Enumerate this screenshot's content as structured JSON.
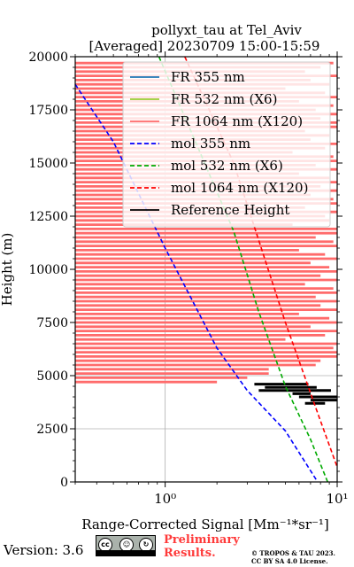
{
  "chart_data": {
    "type": "line",
    "title_line1": "pollyxt_tau at Tel_Aviv",
    "title_line2": "[Averaged] 20230709 15:00-15:59",
    "xlabel": "Range-Corrected Signal [Mm⁻¹*sr⁻¹]",
    "ylabel": "Height (m)",
    "x_scale": "log",
    "xlim": [
      0.3,
      10
    ],
    "ylim": [
      0,
      20000
    ],
    "x_ticks": [
      {
        "value": 1,
        "label": "10⁰"
      },
      {
        "value": 10,
        "label": "10¹"
      }
    ],
    "y_ticks": [
      {
        "value": 0,
        "label": "0"
      },
      {
        "value": 2500,
        "label": "2500"
      },
      {
        "value": 5000,
        "label": "5000"
      },
      {
        "value": 7500,
        "label": "7500"
      },
      {
        "value": 10000,
        "label": "10000"
      },
      {
        "value": 12500,
        "label": "12500"
      },
      {
        "value": 15000,
        "label": "15000"
      },
      {
        "value": 17500,
        "label": "17500"
      },
      {
        "value": 20000,
        "label": "20000"
      }
    ],
    "grid": "x=1 and y=2500, 5000",
    "legend_position": "upper-right",
    "legend": [
      {
        "label": "FR 355 nm",
        "color": "#1f77b4",
        "style": "solid"
      },
      {
        "label": "FR 532 nm (X6)",
        "color": "#9acd32",
        "style": "solid"
      },
      {
        "label": "FR 1064 nm (X120)",
        "color": "#ff6b6b",
        "style": "solid"
      },
      {
        "label": "mol 355 nm",
        "color": "#0000ff",
        "style": "dashed"
      },
      {
        "label": "mol 532 nm (X6)",
        "color": "#00aa00",
        "style": "dashed"
      },
      {
        "label": "mol 1064 nm (X120)",
        "color": "#ff0000",
        "style": "dashed"
      },
      {
        "label": "Reference Height",
        "color": "#000000",
        "style": "solid"
      }
    ],
    "series": [
      {
        "name": "mol 355 nm",
        "color": "#0000ff",
        "dash": true,
        "points": [
          [
            0.3,
            18700
          ],
          [
            0.5,
            16000
          ],
          [
            1.0,
            11000
          ],
          [
            2.0,
            6300
          ],
          [
            3.0,
            4300
          ],
          [
            5.0,
            2400
          ],
          [
            7.7,
            0
          ]
        ]
      },
      {
        "name": "mol 532 nm (X6)",
        "color": "#00aa00",
        "dash": true,
        "points": [
          [
            0.92,
            20000
          ],
          [
            1.5,
            16000
          ],
          [
            2.5,
            11800
          ],
          [
            3.5,
            8000
          ],
          [
            5.0,
            4500
          ],
          [
            7.0,
            2000
          ],
          [
            8.8,
            0
          ]
        ]
      },
      {
        "name": "mol 1064 nm (X120)",
        "color": "#ff0000",
        "dash": true,
        "points": [
          [
            1.3,
            20000
          ],
          [
            2.5,
            15000
          ],
          [
            3.3,
            12000
          ],
          [
            5.0,
            7500
          ],
          [
            7.5,
            3500
          ],
          [
            10.0,
            700
          ]
        ]
      }
    ],
    "fr_1064_segments": [
      [
        19700,
        0.3,
        9.5
      ],
      [
        19500,
        0.3,
        8.0
      ],
      [
        19300,
        0.3,
        6.5
      ],
      [
        19100,
        0.3,
        10.0
      ],
      [
        18900,
        0.3,
        7.0
      ],
      [
        18700,
        0.3,
        9.0
      ],
      [
        18500,
        0.3,
        5.0
      ],
      [
        18300,
        0.3,
        8.5
      ],
      [
        18100,
        0.3,
        10.0
      ],
      [
        17900,
        0.3,
        6.0
      ],
      [
        17700,
        0.3,
        9.5
      ],
      [
        17500,
        0.3,
        7.5
      ],
      [
        17300,
        0.3,
        10.0
      ],
      [
        17100,
        0.3,
        8.0
      ],
      [
        16900,
        0.3,
        10.0
      ],
      [
        16700,
        0.3,
        10.0
      ],
      [
        16500,
        0.3,
        6.5
      ],
      [
        16300,
        0.3,
        9.0
      ],
      [
        16100,
        0.3,
        7.0
      ],
      [
        15900,
        0.3,
        10.0
      ],
      [
        15700,
        0.3,
        8.5
      ],
      [
        15500,
        0.3,
        5.5
      ],
      [
        15300,
        0.3,
        9.5
      ],
      [
        15100,
        0.3,
        10.0
      ],
      [
        14900,
        0.3,
        7.5
      ],
      [
        14700,
        0.3,
        10.0
      ],
      [
        14500,
        0.3,
        6.0
      ],
      [
        14300,
        0.3,
        9.0
      ],
      [
        14100,
        0.3,
        10.0
      ],
      [
        13900,
        0.3,
        8.0
      ],
      [
        13700,
        0.3,
        10.0
      ],
      [
        13500,
        0.3,
        7.0
      ],
      [
        13300,
        0.3,
        9.5
      ],
      [
        13100,
        0.3,
        10.0
      ],
      [
        12900,
        0.3,
        6.5
      ],
      [
        12700,
        0.3,
        10.0
      ],
      [
        12500,
        0.3,
        8.5
      ],
      [
        12300,
        0.3,
        9.0
      ],
      [
        12100,
        0.3,
        5.5
      ],
      [
        11900,
        0.3,
        10.0
      ],
      [
        11700,
        0.3,
        10.0
      ],
      [
        11500,
        0.3,
        7.5
      ],
      [
        11300,
        0.3,
        9.5
      ],
      [
        11100,
        0.3,
        10.0
      ],
      [
        10900,
        0.3,
        6.0
      ],
      [
        10700,
        0.3,
        8.5
      ],
      [
        10500,
        0.3,
        10.0
      ],
      [
        10300,
        0.3,
        7.0
      ],
      [
        10100,
        0.3,
        9.0
      ],
      [
        9900,
        0.3,
        10.0
      ],
      [
        9700,
        0.3,
        8.0
      ],
      [
        9500,
        0.3,
        10.0
      ],
      [
        9300,
        0.3,
        6.5
      ],
      [
        9100,
        0.3,
        9.5
      ],
      [
        8900,
        0.3,
        10.0
      ],
      [
        8700,
        0.3,
        7.5
      ],
      [
        8500,
        0.3,
        10.0
      ],
      [
        8300,
        0.3,
        8.0
      ],
      [
        8100,
        0.3,
        10.0
      ],
      [
        7900,
        0.3,
        6.0
      ],
      [
        7700,
        0.3,
        9.0
      ],
      [
        7500,
        0.3,
        10.0
      ],
      [
        7300,
        0.3,
        7.0
      ],
      [
        7100,
        0.3,
        10.0
      ],
      [
        6900,
        0.3,
        8.5
      ],
      [
        6700,
        0.3,
        5.0
      ],
      [
        6500,
        0.3,
        10.0
      ],
      [
        6300,
        0.3,
        9.5
      ],
      [
        6100,
        0.3,
        10.0
      ],
      [
        5900,
        0.3,
        10.0
      ],
      [
        5700,
        0.3,
        8.0
      ],
      [
        5500,
        0.3,
        7.5
      ],
      [
        5300,
        0.3,
        4.0
      ],
      [
        5100,
        0.3,
        4.0
      ],
      [
        4900,
        0.3,
        3.0
      ],
      [
        4700,
        0.3,
        2.0
      ]
    ],
    "reference_height_segments": [
      [
        4600,
        3.3,
        6.8
      ],
      [
        4450,
        3.8,
        7.6
      ],
      [
        4300,
        3.5,
        9.2
      ],
      [
        4150,
        5.5,
        7.0
      ],
      [
        4000,
        6.0,
        10.0
      ],
      [
        3850,
        7.0,
        10.0
      ],
      [
        3700,
        6.5,
        8.5
      ]
    ]
  },
  "footer": {
    "version_label": "Version: 3.6",
    "preliminary_line1": "Preliminary",
    "preliminary_line2": "Results.",
    "copyright_line1": "© TROPOS & TAU 2023.",
    "copyright_line2": "CC BY SA 4.0 License.",
    "badge_text_cc": "cc",
    "badge_text_by": "BY",
    "badge_text_sa": "SA"
  }
}
